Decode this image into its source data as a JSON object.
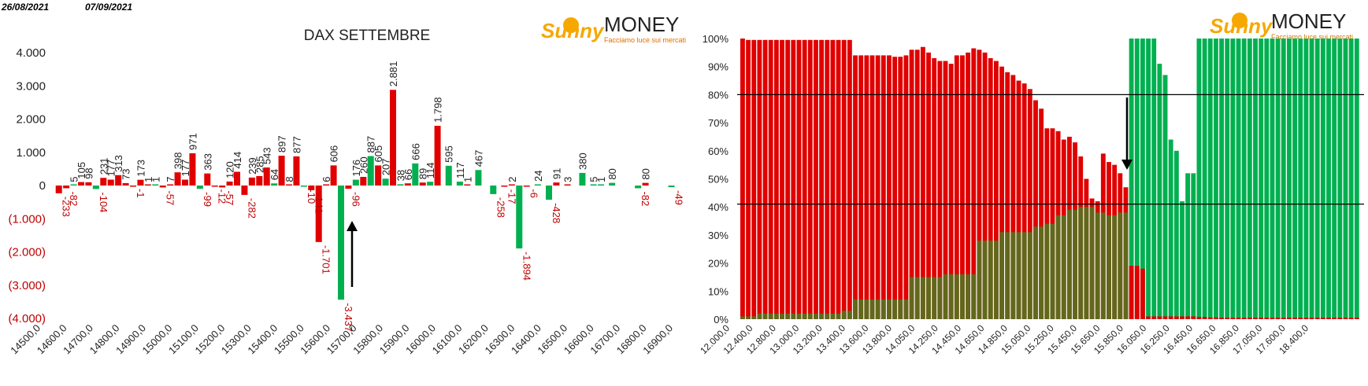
{
  "header": {
    "date_start": "26/08/2021",
    "date_end": "07/09/2021"
  },
  "logo": {
    "word_sunny": "Sunny",
    "word_money": "MONEY",
    "tagline": "Facciamo luce sui mercati"
  },
  "colors": {
    "positive": "#00b050",
    "negative": "#e00000",
    "negative_label": "#c00000",
    "green_bar": "#00b050",
    "red_bar": "#e00000"
  },
  "chart_data": [
    {
      "type": "bar",
      "title": "DAX SETTEMBRE",
      "x_labels": [
        "14500,0",
        "14600,0",
        "14700,0",
        "14800,0",
        "14900,0",
        "15000,0",
        "15100,0",
        "15200,0",
        "15300,0",
        "15400,0",
        "15500,0",
        "15600,0",
        "15700,0",
        "15800,0",
        "15900,0",
        "16000,0",
        "16100,0",
        "16200,0",
        "16300,0",
        "16400,0",
        "16500,0",
        "16600,0",
        "16700,0",
        "16800,0",
        "16900,0"
      ],
      "y_ticks": [
        "4.000",
        "3.000",
        "2.000",
        "1.000",
        "0",
        "(1.000)",
        "(2.000)",
        "(3.000)",
        "(4.000)"
      ],
      "ylim": [
        -4000,
        4000
      ],
      "grid": false,
      "groups": [
        {
          "strike": "14500,0",
          "bars": [
            {
              "color": "red",
              "value": -233,
              "label": "-233"
            },
            {
              "color": "red",
              "value": -82,
              "label": "-82"
            }
          ]
        },
        {
          "strike": "14550,0",
          "bars": [
            {
              "color": "green",
              "value": 5,
              "label": "5"
            },
            {
              "color": "red",
              "value": 105,
              "label": "105"
            }
          ]
        },
        {
          "strike": "14600,0",
          "bars": [
            {
              "color": "red",
              "value": 98,
              "label": "98"
            },
            {
              "color": "green",
              "value": -104,
              "label": "-104"
            }
          ]
        },
        {
          "strike": "14650,0",
          "bars": [
            {
              "color": "red",
              "value": 231,
              "label": "231"
            },
            {
              "color": "red",
              "value": 177,
              "label": "177"
            }
          ]
        },
        {
          "strike": "14700,0",
          "bars": [
            {
              "color": "red",
              "value": 313,
              "label": "313"
            },
            {
              "color": "red",
              "value": 73,
              "label": "73"
            }
          ]
        },
        {
          "strike": "14750,0",
          "bars": [
            {
              "color": "red",
              "value": -1,
              "label": "-1"
            },
            {
              "color": "red",
              "value": 173,
              "label": "173"
            }
          ]
        },
        {
          "strike": "14800,0",
          "bars": [
            {
              "color": "red",
              "value": 1,
              "label": "1"
            },
            {
              "color": "green",
              "value": 1,
              "label": "1"
            }
          ]
        },
        {
          "strike": "14850,0",
          "bars": [
            {
              "color": "red",
              "value": -57,
              "label": "-57"
            },
            {
              "color": "red",
              "value": 7,
              "label": "7"
            }
          ]
        },
        {
          "strike": "14900,0",
          "bars": [
            {
              "color": "red",
              "value": 398,
              "label": "398"
            },
            {
              "color": "red",
              "value": 177,
              "label": "177"
            }
          ]
        },
        {
          "strike": "14950,0",
          "bars": [
            {
              "color": "red",
              "value": 971,
              "label": "971"
            },
            {
              "color": "green",
              "value": -99,
              "label": "-99"
            }
          ]
        },
        {
          "strike": "15000,0",
          "bars": [
            {
              "color": "red",
              "value": 363,
              "label": "363"
            },
            {
              "color": "red",
              "value": -12,
              "label": "-12"
            }
          ]
        },
        {
          "strike": "15050,0",
          "bars": [
            {
              "color": "red",
              "value": -57,
              "label": "-57"
            },
            {
              "color": "red",
              "value": 120,
              "label": "120"
            }
          ]
        },
        {
          "strike": "15100,0",
          "bars": [
            {
              "color": "red",
              "value": 414,
              "label": "414"
            },
            {
              "color": "red",
              "value": -282,
              "label": "-282"
            }
          ]
        },
        {
          "strike": "15150,0",
          "bars": [
            {
              "color": "red",
              "value": 239,
              "label": "239"
            },
            {
              "color": "red",
              "value": 285,
              "label": "285"
            }
          ]
        },
        {
          "strike": "15200,0",
          "bars": [
            {
              "color": "red",
              "value": 543,
              "label": "543"
            },
            {
              "color": "green",
              "value": 64,
              "label": "64"
            }
          ]
        },
        {
          "strike": "15250,0",
          "bars": [
            {
              "color": "red",
              "value": 897,
              "label": "897"
            },
            {
              "color": "red",
              "value": 8,
              "label": "8"
            }
          ]
        },
        {
          "strike": "15300,0",
          "bars": [
            {
              "color": "red",
              "value": 877,
              "label": "877"
            },
            {
              "color": "green",
              "value": -10,
              "label": "-10"
            }
          ]
        },
        {
          "strike": "15350,0",
          "bars": [
            {
              "color": "red",
              "value": -141,
              "label": "-141"
            },
            {
              "color": "red",
              "value": -1701,
              "label": "-1.701"
            }
          ]
        },
        {
          "strike": "15400,0",
          "bars": [
            {
              "color": "red",
              "value": 6,
              "label": "6"
            },
            {
              "color": "red",
              "value": 606,
              "label": "606"
            }
          ]
        },
        {
          "strike": "15450,0",
          "bars": [
            {
              "color": "green",
              "value": -3437,
              "label": "-3.437"
            },
            {
              "color": "red",
              "value": -96,
              "label": "-96"
            }
          ]
        },
        {
          "strike": "15500,0",
          "bars": [
            {
              "color": "green",
              "value": 176,
              "label": "176"
            },
            {
              "color": "red",
              "value": 260,
              "label": "260"
            }
          ]
        },
        {
          "strike": "15550,0",
          "bars": [
            {
              "color": "green",
              "value": 887,
              "label": "887"
            },
            {
              "color": "red",
              "value": 605,
              "label": "605"
            }
          ]
        },
        {
          "strike": "15600,0",
          "bars": [
            {
              "color": "green",
              "value": 207,
              "label": "207"
            },
            {
              "color": "red",
              "value": 2881,
              "label": "2.881"
            }
          ]
        },
        {
          "strike": "15650,0",
          "bars": [
            {
              "color": "green",
              "value": 38,
              "label": "38"
            },
            {
              "color": "red",
              "value": 66,
              "label": "66"
            }
          ]
        },
        {
          "strike": "15700,0",
          "bars": [
            {
              "color": "green",
              "value": 666,
              "label": "666"
            },
            {
              "color": "red",
              "value": 89,
              "label": "89"
            }
          ]
        },
        {
          "strike": "15750,0",
          "bars": [
            {
              "color": "green",
              "value": 114,
              "label": "114"
            },
            {
              "color": "red",
              "value": 1798,
              "label": "1.798"
            }
          ]
        },
        {
          "strike": "15800,0",
          "bars": [
            {
              "color": "green",
              "value": 595,
              "label": "595"
            }
          ]
        },
        {
          "strike": "15850,0",
          "bars": [
            {
              "color": "green",
              "value": 117,
              "label": "117"
            },
            {
              "color": "red",
              "value": 1,
              "label": "1"
            }
          ]
        },
        {
          "strike": "15900,0",
          "bars": [
            {
              "color": "green",
              "value": 467,
              "label": "467"
            }
          ]
        },
        {
          "strike": "15950,0",
          "bars": [
            {
              "color": "green",
              "value": -258,
              "label": "-258"
            }
          ]
        },
        {
          "strike": "16000,0",
          "bars": [
            {
              "color": "red",
              "value": -17,
              "label": "-17"
            },
            {
              "color": "red",
              "value": 2,
              "label": "2"
            }
          ]
        },
        {
          "strike": "16050,0",
          "bars": [
            {
              "color": "green",
              "value": -1894,
              "label": "-1.894"
            },
            {
              "color": "red",
              "value": -6,
              "label": "-6"
            }
          ]
        },
        {
          "strike": "16100,0",
          "bars": [
            {
              "color": "green",
              "value": 24,
              "label": "24"
            }
          ]
        },
        {
          "strike": "16150,0",
          "bars": [
            {
              "color": "green",
              "value": -428,
              "label": "-428"
            },
            {
              "color": "red",
              "value": 91,
              "label": "91"
            }
          ]
        },
        {
          "strike": "16200,0",
          "bars": [
            {
              "color": "red",
              "value": 3,
              "label": "3"
            }
          ]
        },
        {
          "strike": "16250,0",
          "bars": [
            {
              "color": "green",
              "value": 380,
              "label": "380"
            }
          ]
        },
        {
          "strike": "16300,0",
          "bars": [
            {
              "color": "green",
              "value": 5,
              "label": "5"
            },
            {
              "color": "green",
              "value": 1,
              "label": "1"
            }
          ]
        },
        {
          "strike": "16350,0",
          "bars": [
            {
              "color": "green",
              "value": 80,
              "label": "80"
            }
          ]
        },
        {
          "strike": "16400,0",
          "bars": []
        },
        {
          "strike": "16450,0",
          "bars": [
            {
              "color": "green",
              "value": -82,
              "label": "-82"
            },
            {
              "color": "red",
              "value": 80,
              "label": "80"
            }
          ]
        },
        {
          "strike": "16500,0",
          "bars": []
        },
        {
          "strike": "16550,0",
          "bars": [
            {
              "color": "green",
              "value": -49,
              "label": "-49"
            }
          ]
        }
      ]
    },
    {
      "type": "bar",
      "title": "",
      "x_labels": [
        "12.000,0",
        "12.400,0",
        "12.800,0",
        "13.000,0",
        "13.200,0",
        "13.400,0",
        "13.600,0",
        "13.800,0",
        "14.050,0",
        "14.250,0",
        "14.450,0",
        "14.650,0",
        "14.850,0",
        "15.050,0",
        "15.250,0",
        "15.450,0",
        "15.650,0",
        "15.850,0",
        "16.050,0",
        "16.250,0",
        "16.450,0",
        "16.650,0",
        "16.850,0",
        "17.050,0",
        "17.600,0",
        "18.400,0"
      ],
      "y_ticks": [
        "100%",
        "90%",
        "80%",
        "70%",
        "60%",
        "50%",
        "40%",
        "30%",
        "20%",
        "10%",
        "0%"
      ],
      "ylim": [
        0,
        100
      ],
      "reference_lines": [
        80,
        41
      ],
      "grid": false,
      "red_series": [
        100,
        99.5,
        99.5,
        99.5,
        99.5,
        99.5,
        99.5,
        99.5,
        99.5,
        99.5,
        99.5,
        99.5,
        99.5,
        99.5,
        99.5,
        99.5,
        99.5,
        99.5,
        99.5,
        99.5,
        94,
        94,
        94,
        94,
        94,
        94,
        94,
        93.5,
        93.5,
        94,
        96,
        96,
        97,
        95,
        93,
        92,
        92,
        91,
        94,
        94,
        95,
        96.5,
        96,
        95,
        93,
        92,
        90,
        88,
        87,
        85,
        84,
        82,
        78,
        75,
        68,
        68,
        67,
        64,
        65,
        63,
        58,
        50,
        43,
        42,
        59,
        56,
        55,
        52,
        47
      ],
      "green_series": [
        1,
        1,
        1,
        2,
        2,
        2,
        2,
        2,
        2,
        2,
        2,
        2,
        2,
        2,
        2,
        2,
        2,
        2,
        3,
        3,
        7,
        7,
        7,
        7,
        7,
        7,
        7,
        7,
        7,
        7,
        15,
        15,
        15,
        15,
        15,
        15,
        16,
        16,
        16,
        16,
        16,
        16,
        28,
        28,
        28,
        28,
        31,
        31,
        31,
        31,
        31,
        31,
        33,
        33,
        34,
        34,
        37,
        37,
        39,
        39,
        40,
        40,
        40,
        38,
        38,
        37,
        37,
        38,
        38
      ],
      "green_tail": [
        100,
        100,
        100,
        100,
        100,
        91,
        87,
        64,
        60,
        42,
        52,
        52,
        100,
        100,
        100,
        100,
        100,
        100,
        100,
        100,
        100,
        100,
        100,
        100,
        100,
        100,
        100,
        100,
        100,
        100,
        100,
        100,
        100,
        100,
        100,
        100,
        100,
        100,
        100,
        100,
        100
      ],
      "red_tail": [
        19,
        19,
        18,
        1,
        1,
        1,
        1,
        1,
        1,
        1,
        1,
        1,
        0.8,
        0.8,
        0.6,
        0.6,
        0.5,
        0.5,
        0.5,
        0.5,
        0.5,
        0.5,
        0.5,
        0.5,
        0.5,
        0.5,
        0.5,
        0.5,
        0.5,
        0.5,
        0.5,
        0.5,
        0.5,
        0.5,
        0.5,
        0.5,
        0.5,
        0.5,
        0.5,
        0.5,
        0.5
      ]
    }
  ]
}
